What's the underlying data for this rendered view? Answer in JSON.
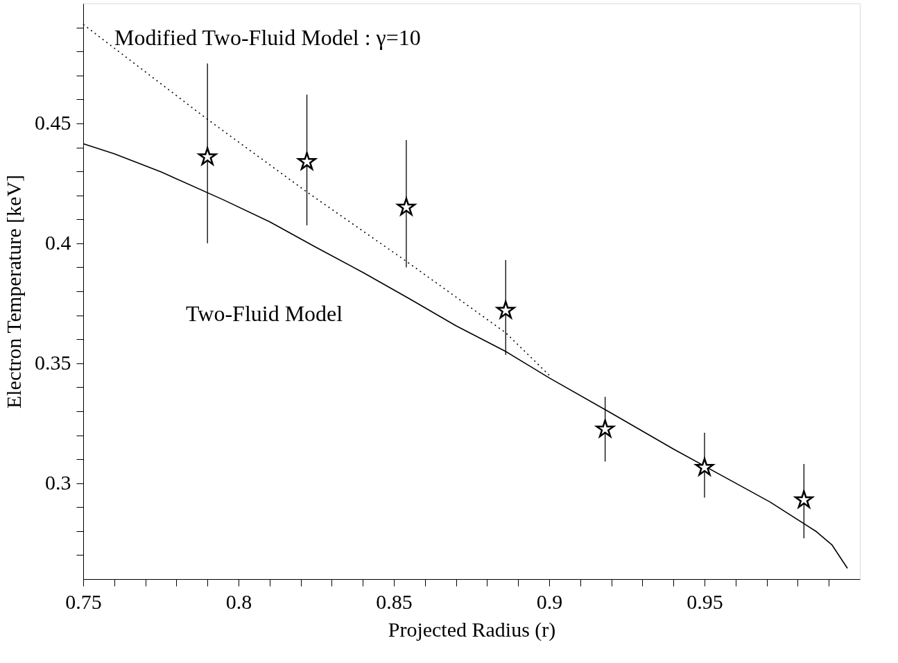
{
  "chart_data": {
    "type": "scatter",
    "xlabel": "Projected Radius (r)",
    "ylabel": "Electron Temperature [keV]",
    "xlim": [
      0.75,
      1.0
    ],
    "ylim": [
      0.26,
      0.5
    ],
    "xticks": [
      0.75,
      {
        "value": 0.76,
        "label": null
      },
      {
        "value": 0.77,
        "label": null
      },
      {
        "value": 0.78,
        "label": null
      },
      {
        "value": 0.79,
        "label": null
      },
      0.8,
      {
        "value": 0.81,
        "label": null
      },
      {
        "value": 0.82,
        "label": null
      },
      {
        "value": 0.83,
        "label": null
      },
      {
        "value": 0.84,
        "label": null
      },
      0.85,
      {
        "value": 0.86,
        "label": null
      },
      {
        "value": 0.87,
        "label": null
      },
      {
        "value": 0.88,
        "label": null
      },
      {
        "value": 0.89,
        "label": null
      },
      0.9,
      {
        "value": 0.91,
        "label": null
      },
      {
        "value": 0.92,
        "label": null
      },
      {
        "value": 0.93,
        "label": null
      },
      {
        "value": 0.94,
        "label": null
      },
      0.95,
      {
        "value": 0.96,
        "label": null
      },
      {
        "value": 0.97,
        "label": null
      },
      {
        "value": 0.98,
        "label": null
      },
      {
        "value": 0.99,
        "label": null
      }
    ],
    "yticks": [
      {
        "value": 0.27,
        "label": null
      },
      {
        "value": 0.28,
        "label": null
      },
      {
        "value": 0.29,
        "label": null
      },
      0.3,
      {
        "value": 0.31,
        "label": null
      },
      {
        "value": 0.32,
        "label": null
      },
      {
        "value": 0.33,
        "label": null
      },
      {
        "value": 0.34,
        "label": null
      },
      0.35,
      {
        "value": 0.36,
        "label": null
      },
      {
        "value": 0.37,
        "label": null
      },
      {
        "value": 0.38,
        "label": null
      },
      {
        "value": 0.39,
        "label": null
      },
      0.4,
      {
        "value": 0.41,
        "label": null
      },
      {
        "value": 0.42,
        "label": null
      },
      {
        "value": 0.43,
        "label": null
      },
      {
        "value": 0.44,
        "label": null
      },
      0.45,
      {
        "value": 0.46,
        "label": null
      },
      {
        "value": 0.47,
        "label": null
      },
      {
        "value": 0.48,
        "label": null
      },
      {
        "value": 0.49,
        "label": null
      }
    ],
    "grid": false,
    "series": [
      {
        "color": "#000000",
        "marker": "star",
        "x": [
          0.79,
          0.822,
          0.854,
          0.886,
          0.918,
          0.95,
          0.982
        ],
        "values": [
          0.436,
          0.434,
          0.415,
          0.372,
          0.3225,
          0.3065,
          0.293
        ],
        "errors": [
          [
            0.4,
            0.475
          ],
          [
            0.4075,
            0.462
          ],
          [
            0.39,
            0.443
          ],
          [
            0.3535,
            0.393
          ],
          [
            0.309,
            0.336
          ],
          [
            0.294,
            0.321
          ],
          [
            0.277,
            0.308
          ]
        ]
      },
      {
        "type": "line",
        "color": "#000000",
        "line_style": "solid",
        "x": [
          0.75,
          0.76,
          0.775,
          0.795,
          0.81,
          0.825,
          0.84,
          0.855,
          0.87,
          0.886,
          0.9,
          0.92,
          0.94,
          0.96,
          0.971,
          0.986,
          0.991,
          0.996
        ],
        "values": [
          0.4415,
          0.4373,
          0.4298,
          0.4182,
          0.409,
          0.3983,
          0.3879,
          0.3769,
          0.3656,
          0.3549,
          0.3439,
          0.3292,
          0.3142,
          0.3,
          0.2922,
          0.2798,
          0.2743,
          0.2645
        ]
      },
      {
        "type": "line",
        "color": "#000000",
        "line_style": "dotted",
        "x": [
          0.75,
          0.79,
          0.822,
          0.854,
          0.886,
          0.9
        ],
        "values": [
          0.4913,
          0.4517,
          0.4214,
          0.3925,
          0.3627,
          0.345
        ]
      }
    ],
    "annotations": [
      "Modified Two-Fluid Model : γ=10",
      "Two-Fluid Model"
    ]
  }
}
